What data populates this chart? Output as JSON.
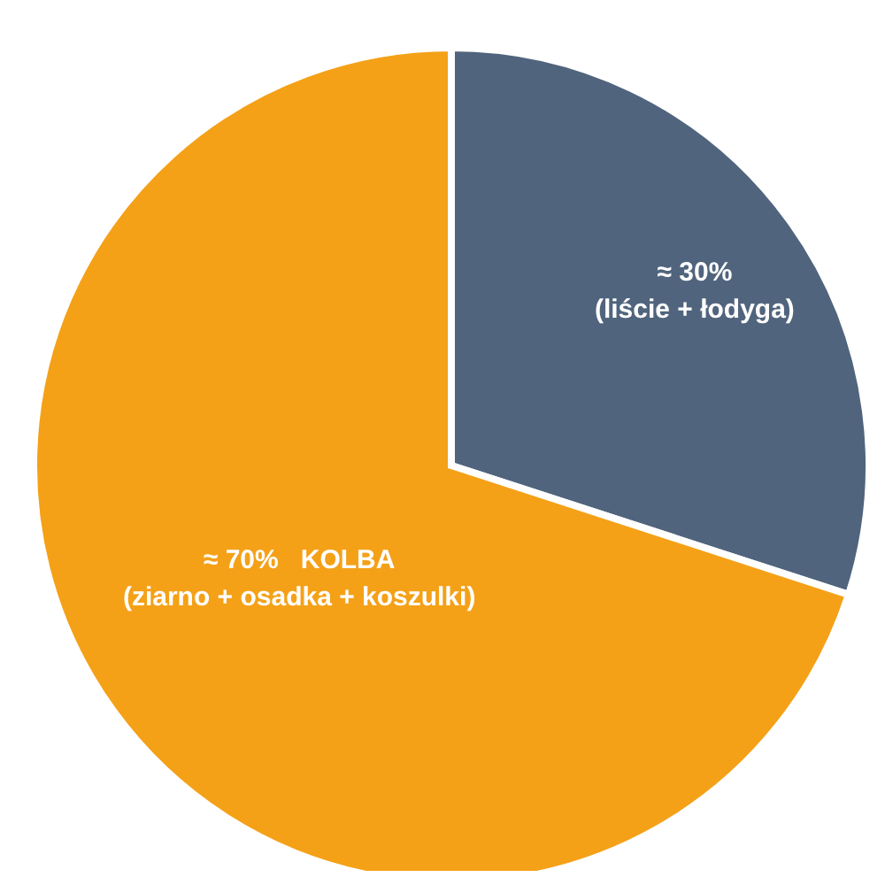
{
  "chart_data": {
    "type": "pie",
    "categories": [
      "(liście + łodyga)",
      "KOLBA\n(ziarno + osadka + koszulki)"
    ],
    "values": [
      30,
      70
    ],
    "value_labels": [
      "≈ 30%",
      "≈ 70%"
    ],
    "colors": [
      "#50647d",
      "#f4a118"
    ],
    "legend": false
  }
}
